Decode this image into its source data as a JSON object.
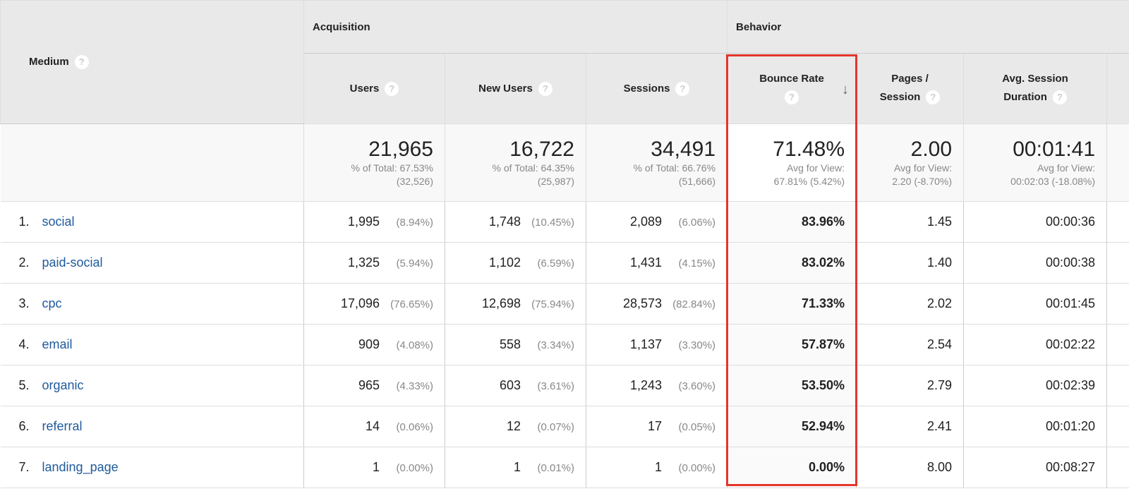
{
  "header": {
    "medium": "Medium",
    "groups": {
      "acquisition": "Acquisition",
      "behavior": "Behavior"
    },
    "columns": {
      "users": "Users",
      "new_users": "New Users",
      "sessions": "Sessions",
      "bounce_rate": "Bounce Rate",
      "pages_session_1": "Pages /",
      "pages_session_2": "Session",
      "duration_1": "Avg. Session",
      "duration_2": "Duration"
    },
    "help": "?",
    "sort_icon": "arrow-down"
  },
  "summary": {
    "users": {
      "value": "21,965",
      "line1": "% of Total: 67.53%",
      "line2": "(32,526)"
    },
    "new_users": {
      "value": "16,722",
      "line1": "% of Total: 64.35%",
      "line2": "(25,987)"
    },
    "sessions": {
      "value": "34,491",
      "line1": "% of Total: 66.76%",
      "line2": "(51,666)"
    },
    "bounce_rate": {
      "value": "71.48%",
      "line1": "Avg for View:",
      "line2": "67.81% (5.42%)"
    },
    "pages_session": {
      "value": "2.00",
      "line1": "Avg for View:",
      "line2": "2.20 (-8.70%)"
    },
    "duration": {
      "value": "00:01:41",
      "line1": "Avg for View:",
      "line2": "00:02:03 (-18.08%)"
    }
  },
  "rows": [
    {
      "rank": "1.",
      "medium": "social",
      "users": "1,995",
      "users_pct": "(8.94%)",
      "new_users": "1,748",
      "new_users_pct": "(10.45%)",
      "sessions": "2,089",
      "sessions_pct": "(6.06%)",
      "bounce_rate": "83.96%",
      "pages_session": "1.45",
      "duration": "00:00:36"
    },
    {
      "rank": "2.",
      "medium": "paid-social",
      "users": "1,325",
      "users_pct": "(5.94%)",
      "new_users": "1,102",
      "new_users_pct": "(6.59%)",
      "sessions": "1,431",
      "sessions_pct": "(4.15%)",
      "bounce_rate": "83.02%",
      "pages_session": "1.40",
      "duration": "00:00:38"
    },
    {
      "rank": "3.",
      "medium": "cpc",
      "users": "17,096",
      "users_pct": "(76.65%)",
      "new_users": "12,698",
      "new_users_pct": "(75.94%)",
      "sessions": "28,573",
      "sessions_pct": "(82.84%)",
      "bounce_rate": "71.33%",
      "pages_session": "2.02",
      "duration": "00:01:45"
    },
    {
      "rank": "4.",
      "medium": "email",
      "users": "909",
      "users_pct": "(4.08%)",
      "new_users": "558",
      "new_users_pct": "(3.34%)",
      "sessions": "1,137",
      "sessions_pct": "(3.30%)",
      "bounce_rate": "57.87%",
      "pages_session": "2.54",
      "duration": "00:02:22"
    },
    {
      "rank": "5.",
      "medium": "organic",
      "users": "965",
      "users_pct": "(4.33%)",
      "new_users": "603",
      "new_users_pct": "(3.61%)",
      "sessions": "1,243",
      "sessions_pct": "(3.60%)",
      "bounce_rate": "53.50%",
      "pages_session": "2.79",
      "duration": "00:02:39"
    },
    {
      "rank": "6.",
      "medium": "referral",
      "users": "14",
      "users_pct": "(0.06%)",
      "new_users": "12",
      "new_users_pct": "(0.07%)",
      "sessions": "17",
      "sessions_pct": "(0.05%)",
      "bounce_rate": "52.94%",
      "pages_session": "2.41",
      "duration": "00:01:20"
    },
    {
      "rank": "7.",
      "medium": "landing_page",
      "users": "1",
      "users_pct": "(0.00%)",
      "new_users": "1",
      "new_users_pct": "(0.01%)",
      "sessions": "1",
      "sessions_pct": "(0.00%)",
      "bounce_rate": "0.00%",
      "pages_session": "8.00",
      "duration": "00:08:27"
    }
  ],
  "colors": {
    "highlight": "#e5352b",
    "link": "#1f5a9c",
    "header_bg": "#e9e9e9"
  }
}
